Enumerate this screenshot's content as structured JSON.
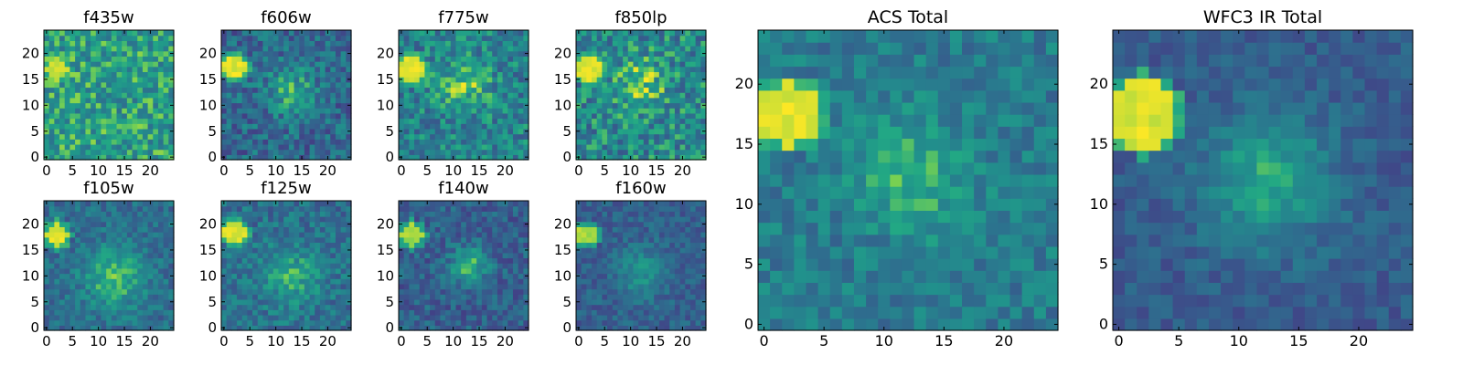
{
  "figure": {
    "panel_titles": [
      "f435w",
      "f606w",
      "f775w",
      "f850lp",
      "f105w",
      "f125w",
      "f140w",
      "f160w",
      "ACS Total",
      "WFC3 IR Total"
    ]
  },
  "chart_data": [
    {
      "type": "heatmap",
      "title": "f435w",
      "grid_size": 25,
      "xlim": [
        0,
        25
      ],
      "ylim": [
        0,
        25
      ],
      "xticks": [
        0,
        5,
        10,
        15,
        20
      ],
      "yticks": [
        0,
        5,
        10,
        15,
        20
      ],
      "colormap": "viridis",
      "blob": {
        "center": [
          2,
          17
        ],
        "radius": 2.2,
        "peak": 0.98
      },
      "background": 0.68,
      "noise": 0.22,
      "source": null
    },
    {
      "type": "heatmap",
      "title": "f606w",
      "grid_size": 25,
      "xlim": [
        0,
        25
      ],
      "ylim": [
        0,
        25
      ],
      "xticks": [
        0,
        5,
        10,
        15,
        20
      ],
      "yticks": [
        0,
        5,
        10,
        15,
        20
      ],
      "colormap": "viridis",
      "blob": {
        "center": [
          2,
          17.5
        ],
        "radius": 2.2,
        "peak": 1.0
      },
      "background": 0.42,
      "noise": 0.2,
      "source": {
        "center": [
          13,
          13
        ],
        "sigma": 3.5,
        "amplitude": 0.3
      }
    },
    {
      "type": "heatmap",
      "title": "f775w",
      "grid_size": 25,
      "xlim": [
        0,
        25
      ],
      "ylim": [
        0,
        25
      ],
      "xticks": [
        0,
        5,
        10,
        15,
        20
      ],
      "yticks": [
        0,
        5,
        10,
        15,
        20
      ],
      "colormap": "viridis",
      "blob": {
        "center": [
          2,
          17
        ],
        "radius": 2.3,
        "peak": 1.0
      },
      "background": 0.55,
      "noise": 0.22,
      "source": {
        "center": [
          12,
          14
        ],
        "sigma": 3.5,
        "amplitude": 0.25
      }
    },
    {
      "type": "heatmap",
      "title": "f850lp",
      "grid_size": 25,
      "xlim": [
        0,
        25
      ],
      "ylim": [
        0,
        25
      ],
      "xticks": [
        0,
        5,
        10,
        15,
        20
      ],
      "yticks": [
        0,
        5,
        10,
        15,
        20
      ],
      "colormap": "viridis",
      "blob": {
        "center": [
          2,
          17
        ],
        "radius": 2.3,
        "peak": 1.0
      },
      "background": 0.58,
      "noise": 0.24,
      "source": {
        "center": [
          12,
          14
        ],
        "sigma": 3.5,
        "amplitude": 0.25
      }
    },
    {
      "type": "heatmap",
      "title": "f105w",
      "grid_size": 25,
      "xlim": [
        0,
        25
      ],
      "ylim": [
        0,
        25
      ],
      "xticks": [
        0,
        5,
        10,
        15,
        20
      ],
      "yticks": [
        0,
        5,
        10,
        15,
        20
      ],
      "colormap": "viridis",
      "blob": {
        "center": [
          2,
          18
        ],
        "radius": 2.2,
        "peak": 1.0
      },
      "background": 0.45,
      "noise": 0.14,
      "source": {
        "center": [
          13,
          10
        ],
        "sigma": 4.0,
        "amplitude": 0.38
      }
    },
    {
      "type": "heatmap",
      "title": "f125w",
      "grid_size": 25,
      "xlim": [
        0,
        25
      ],
      "ylim": [
        0,
        25
      ],
      "xticks": [
        0,
        5,
        10,
        15,
        20
      ],
      "yticks": [
        0,
        5,
        10,
        15,
        20
      ],
      "colormap": "viridis",
      "blob": {
        "center": [
          2,
          18.5
        ],
        "radius": 2.2,
        "peak": 1.0
      },
      "background": 0.46,
      "noise": 0.16,
      "source": {
        "center": [
          13,
          10
        ],
        "sigma": 4.0,
        "amplitude": 0.28
      }
    },
    {
      "type": "heatmap",
      "title": "f140w",
      "grid_size": 25,
      "xlim": [
        0,
        25
      ],
      "ylim": [
        0,
        25
      ],
      "xticks": [
        0,
        5,
        10,
        15,
        20
      ],
      "yticks": [
        0,
        5,
        10,
        15,
        20
      ],
      "colormap": "viridis",
      "blob": {
        "center": [
          2,
          18
        ],
        "radius": 2.2,
        "peak": 0.95
      },
      "background": 0.38,
      "noise": 0.15,
      "source": {
        "center": [
          13,
          12
        ],
        "sigma": 2.5,
        "amplitude": 0.42
      }
    },
    {
      "type": "heatmap",
      "title": "f160w",
      "grid_size": 25,
      "xlim": [
        0,
        25
      ],
      "ylim": [
        0,
        25
      ],
      "xticks": [
        0,
        5,
        10,
        15,
        20
      ],
      "yticks": [
        0,
        5,
        10,
        15,
        20
      ],
      "colormap": "viridis",
      "blob": {
        "center": [
          1.5,
          18
        ],
        "radius": 2.0,
        "peak": 0.95
      },
      "background": 0.38,
      "noise": 0.12,
      "source": {
        "center": [
          12,
          11
        ],
        "sigma": 3.5,
        "amplitude": 0.25
      }
    },
    {
      "type": "heatmap",
      "title": "ACS Total",
      "grid_size": 25,
      "xlim": [
        0,
        25
      ],
      "ylim": [
        0,
        25
      ],
      "xticks": [
        0,
        5,
        10,
        15,
        20
      ],
      "yticks": [
        0,
        5,
        10,
        15,
        20
      ],
      "colormap": "viridis",
      "blob": {
        "center": [
          2,
          17.5
        ],
        "radius": 2.6,
        "peak": 1.0
      },
      "background": 0.52,
      "noise": 0.14,
      "source": {
        "center": [
          12.5,
          12.5
        ],
        "sigma": 3.2,
        "amplitude": 0.28
      }
    },
    {
      "type": "heatmap",
      "title": "WFC3 IR Total",
      "grid_size": 25,
      "xlim": [
        0,
        25
      ],
      "ylim": [
        0,
        25
      ],
      "xticks": [
        0,
        5,
        10,
        15,
        20
      ],
      "yticks": [
        0,
        5,
        10,
        15,
        20
      ],
      "colormap": "viridis",
      "blob": {
        "center": [
          2,
          17.5
        ],
        "radius": 2.7,
        "peak": 1.0
      },
      "background": 0.36,
      "noise": 0.1,
      "source": {
        "center": [
          12.5,
          12
        ],
        "sigma": 3.8,
        "amplitude": 0.38
      }
    }
  ]
}
